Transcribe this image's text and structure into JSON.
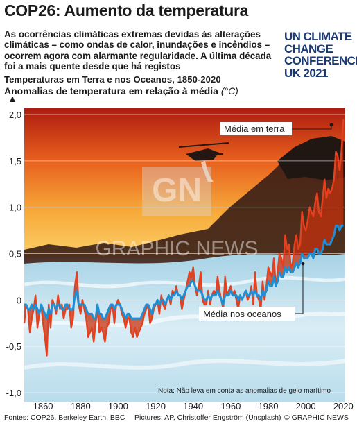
{
  "title": "COP26: Aumento da temperatura",
  "intro": "As ocorrências climáticas extremas devidas às alterações climáticas – como ondas de calor, inundações e incêndios – ocorrem agora com alarmante regularidade. A última década foi a mais quente desde que há registos",
  "logo_lines": [
    "UN CLIMATE",
    "CHANGE",
    "CONFERENCE",
    "UK 2021"
  ],
  "subtitle_1": "Temperaturas em Terra e nos Oceanos, 1850-2020",
  "subtitle_2": "Anomalias de temperatura em relação à média",
  "subtitle_unit": "(°C)",
  "watermark_badge": "GN",
  "watermark_text": "GRAPHIC NEWS",
  "sources": "Fontes: COP26, Berkeley Earth, BBC",
  "credits": "Pictures: AP, Christoffer Engström (Unsplash)",
  "copyright": "© GRAPHIC NEWS",
  "colors": {
    "land": "#e3411f",
    "ocean": "#1e8fd5",
    "logo": "#1b3a73"
  },
  "chart_data": {
    "type": "line",
    "title": "Temperaturas em Terra e nos Oceanos, 1850-2020",
    "ylabel": "Anomalias de temperatura em relação à média (°C)",
    "xlim": [
      1850,
      2021
    ],
    "ylim": [
      -1.0,
      2.0
    ],
    "yticks": [
      -1.0,
      -0.5,
      0,
      0.5,
      1.0,
      1.5,
      2.0
    ],
    "ytick_labels": [
      "-1,0",
      "-0,5",
      "0",
      "0,5",
      "1,0",
      "1,5",
      "2,0"
    ],
    "xticks": [
      1860,
      1880,
      1900,
      1920,
      1940,
      1960,
      1980,
      2000,
      2020
    ],
    "grid": true,
    "series": [
      {
        "name": "Média em terra",
        "x_start": 1850,
        "values": [
          -0.25,
          -0.05,
          -0.1,
          -0.35,
          -0.2,
          -0.1,
          0.05,
          -0.3,
          -0.15,
          -0.05,
          -0.25,
          -0.4,
          -0.6,
          -0.05,
          -0.3,
          0.0,
          -0.05,
          -0.15,
          0.05,
          -0.1,
          -0.05,
          -0.2,
          -0.1,
          -0.1,
          -0.05,
          -0.3,
          -0.2,
          0.15,
          0.3,
          -0.05,
          -0.15,
          0.0,
          -0.1,
          -0.2,
          -0.4,
          -0.35,
          -0.3,
          -0.45,
          -0.25,
          -0.1,
          -0.35,
          -0.3,
          -0.35,
          -0.45,
          -0.3,
          -0.25,
          -0.1,
          -0.05,
          -0.25,
          -0.05,
          0.0,
          -0.05,
          -0.15,
          -0.2,
          -0.3,
          -0.2,
          -0.2,
          -0.35,
          -0.4,
          -0.3,
          -0.4,
          -0.35,
          -0.3,
          -0.25,
          -0.15,
          -0.1,
          -0.05,
          -0.25,
          -0.2,
          -0.1,
          -0.05,
          0.0,
          -0.15,
          0.05,
          -0.05,
          -0.1,
          0.0,
          0.05,
          -0.05,
          0.1,
          0.05,
          0.15,
          0.05,
          0.05,
          -0.1,
          0.0,
          0.1,
          0.2,
          0.3,
          0.25,
          0.35,
          0.15,
          0.05,
          0.15,
          0.3,
          0.0,
          -0.05,
          -0.05,
          0.1,
          -0.05,
          0.05,
          0.1,
          0.05,
          0.25,
          0.1,
          0.0,
          -0.1,
          0.25,
          0.05,
          0.1,
          0.15,
          0.05,
          0.1,
          0.0,
          -0.1,
          0.05,
          0.0,
          0.05,
          0.1,
          0.0,
          0.05,
          0.15,
          -0.05,
          0.3,
          0.05,
          0.0,
          -0.1,
          0.2,
          0.0,
          0.15,
          0.35,
          0.3,
          0.25,
          0.45,
          0.15,
          0.3,
          0.5,
          0.45,
          0.35,
          0.7,
          0.55,
          0.6,
          0.35,
          0.4,
          0.6,
          0.7,
          0.55,
          0.6,
          0.95,
          0.8,
          0.75,
          0.85,
          1.0,
          0.95,
          0.9,
          1.05,
          1.15,
          0.95,
          0.9,
          1.1,
          1.3,
          1.1,
          1.2,
          1.15,
          1.2,
          1.3,
          1.6,
          1.55,
          1.4,
          1.6,
          1.95
        ]
      },
      {
        "name": "Média nos oceanos",
        "x_start": 1850,
        "values": [
          -0.05,
          -0.05,
          -0.1,
          -0.1,
          -0.05,
          -0.1,
          -0.05,
          -0.1,
          -0.15,
          -0.05,
          -0.1,
          -0.15,
          -0.2,
          -0.1,
          -0.15,
          -0.05,
          -0.05,
          -0.1,
          -0.05,
          -0.05,
          -0.1,
          -0.1,
          -0.05,
          -0.05,
          -0.1,
          -0.1,
          -0.1,
          0.05,
          0.1,
          -0.05,
          -0.05,
          -0.05,
          -0.05,
          -0.1,
          -0.15,
          -0.15,
          -0.15,
          -0.2,
          -0.2,
          -0.05,
          -0.15,
          -0.15,
          -0.2,
          -0.2,
          -0.15,
          -0.1,
          -0.05,
          -0.05,
          -0.1,
          -0.05,
          -0.05,
          -0.05,
          -0.1,
          -0.15,
          -0.2,
          -0.15,
          -0.15,
          -0.2,
          -0.2,
          -0.2,
          -0.2,
          -0.2,
          -0.2,
          -0.15,
          -0.1,
          -0.05,
          -0.05,
          -0.1,
          -0.15,
          -0.05,
          -0.05,
          0.0,
          -0.05,
          0.0,
          0.0,
          -0.05,
          0.0,
          0.05,
          0.0,
          0.05,
          0.05,
          0.1,
          0.05,
          0.05,
          0.0,
          0.05,
          0.1,
          0.15,
          0.15,
          0.2,
          0.2,
          0.15,
          0.1,
          0.1,
          0.1,
          0.05,
          0.0,
          0.0,
          0.05,
          0.0,
          0.05,
          0.05,
          0.05,
          0.1,
          0.05,
          0.0,
          -0.05,
          0.05,
          0.05,
          0.05,
          0.1,
          0.05,
          0.05,
          0.05,
          0.0,
          0.05,
          0.0,
          0.05,
          0.1,
          0.05,
          0.05,
          0.1,
          0.05,
          0.1,
          0.05,
          0.05,
          0.0,
          0.1,
          0.05,
          0.1,
          0.2,
          0.15,
          0.15,
          0.25,
          0.15,
          0.2,
          0.3,
          0.25,
          0.25,
          0.35,
          0.3,
          0.35,
          0.3,
          0.3,
          0.35,
          0.4,
          0.35,
          0.4,
          0.5,
          0.45,
          0.45,
          0.45,
          0.5,
          0.5,
          0.45,
          0.55,
          0.55,
          0.5,
          0.5,
          0.55,
          0.65,
          0.6,
          0.6,
          0.6,
          0.65,
          0.7,
          0.8,
          0.8,
          0.75,
          0.8,
          0.8
        ]
      }
    ],
    "annotations": [
      "Média em terra",
      "Média nos oceanos"
    ],
    "note": "Nota: Não leva em conta as anomalias de gelo marítimo"
  }
}
